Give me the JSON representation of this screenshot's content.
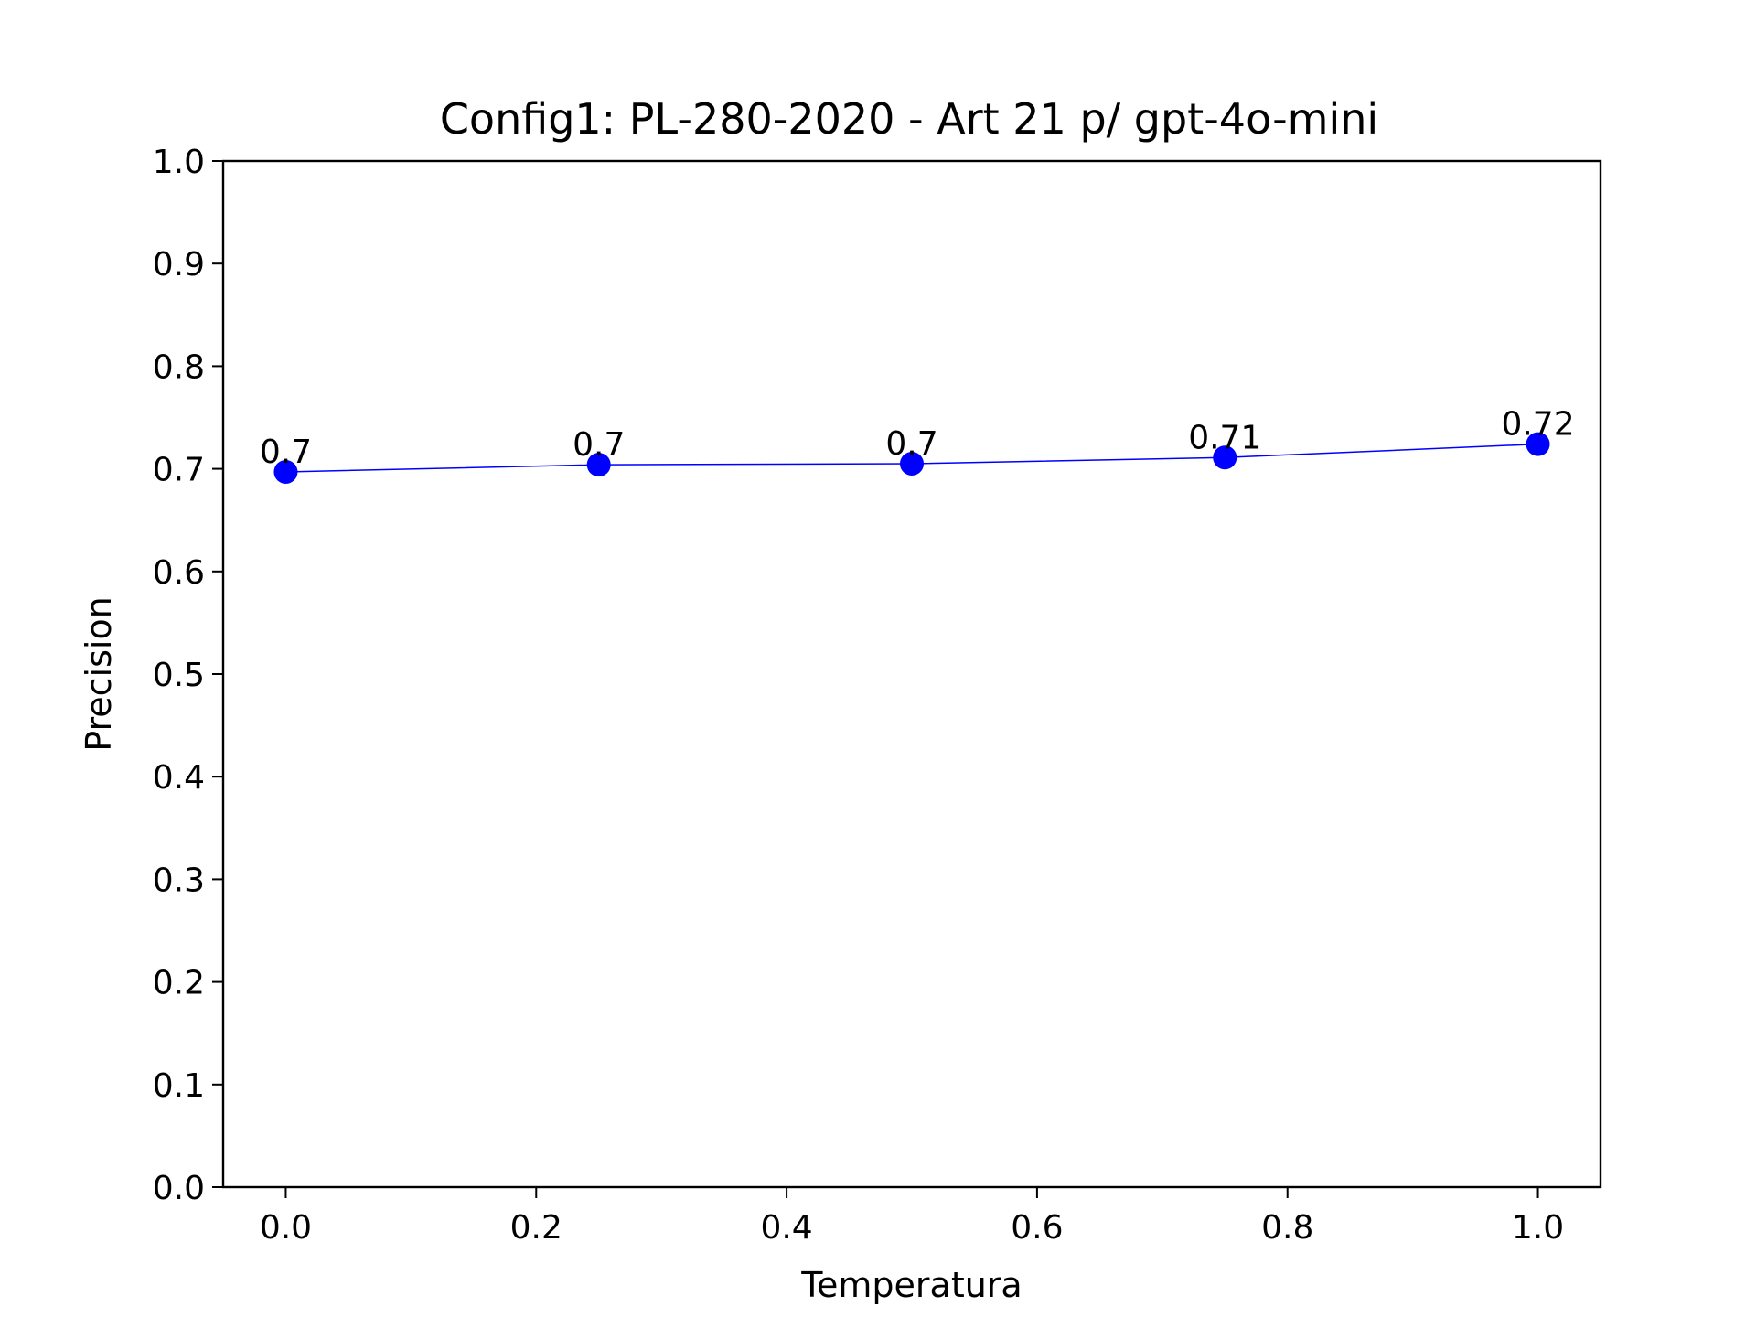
{
  "chart_data": {
    "type": "line",
    "title": "Config1: PL-280-2020 - Art 21 p/ gpt-4o-mini",
    "xlabel": "Temperatura",
    "ylabel": "Precision",
    "xlim": [
      -0.05,
      1.05
    ],
    "ylim": [
      0.0,
      1.0
    ],
    "x_ticks": [
      0.0,
      0.2,
      0.4,
      0.6,
      0.8,
      1.0
    ],
    "x_tick_labels": [
      "0.0",
      "0.2",
      "0.4",
      "0.6",
      "0.8",
      "1.0"
    ],
    "y_ticks": [
      0.0,
      0.1,
      0.2,
      0.3,
      0.4,
      0.5,
      0.6,
      0.7,
      0.8,
      0.9,
      1.0
    ],
    "y_tick_labels": [
      "0.0",
      "0.1",
      "0.2",
      "0.3",
      "0.4",
      "0.5",
      "0.6",
      "0.7",
      "0.8",
      "0.9",
      "1.0"
    ],
    "grid": false,
    "series": [
      {
        "x": [
          0.0,
          0.25,
          0.5,
          0.75,
          1.0
        ],
        "y": [
          0.697,
          0.704,
          0.705,
          0.711,
          0.724
        ],
        "labels": [
          "0.7",
          "0.7",
          "0.7",
          "0.71",
          "0.72"
        ],
        "color": "#0000ff",
        "marker": "circle"
      }
    ]
  }
}
